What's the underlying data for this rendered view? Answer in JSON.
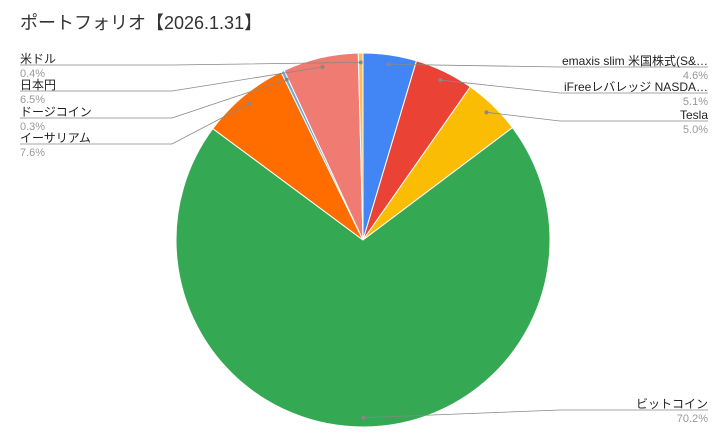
{
  "chart_data": {
    "type": "pie",
    "title": "ポートフォリオ【2026.1.31】",
    "categories": [
      "emaxis slim 米国株式(S&…",
      "iFreeレバレッジ NASDA…",
      "Tesla",
      "ビットコイン",
      "イーサリアム",
      "ドージコイン",
      "日本円",
      "米ドル"
    ],
    "values": [
      4.6,
      5.1,
      5.0,
      70.2,
      7.6,
      0.3,
      6.5,
      0.4
    ],
    "value_labels": [
      "4.6%",
      "5.1%",
      "5.0%",
      "70.2%",
      "7.6%",
      "0.3%",
      "6.5%",
      "0.4%"
    ],
    "colors": [
      "#4285f4",
      "#ea4335",
      "#fbbc04",
      "#34a853",
      "#ff6d01",
      "#6fa8dc",
      "#f07b72",
      "#fbbc5c"
    ]
  }
}
